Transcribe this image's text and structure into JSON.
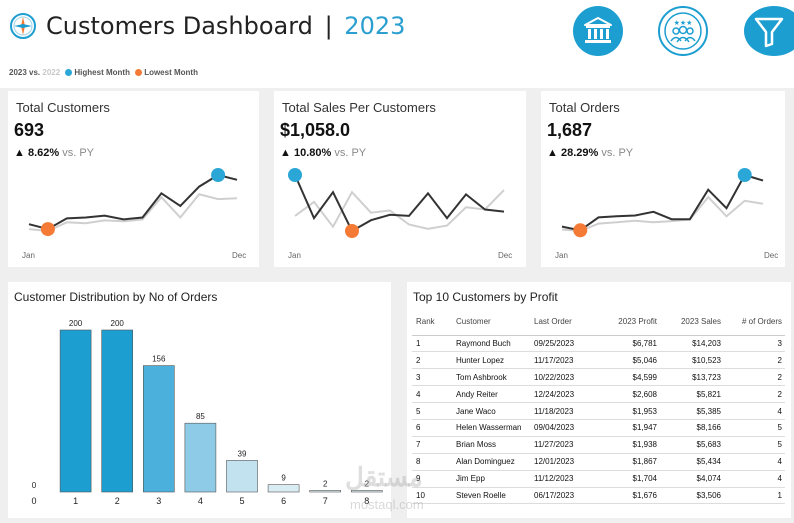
{
  "header": {
    "title": "Customers Dashboard",
    "separator": "|",
    "year": "2023",
    "icons": [
      "compass-icon",
      "bank-icon",
      "people-rating-icon",
      "filter-icon"
    ]
  },
  "legend": {
    "current": "2023 vs.",
    "previous": "2022",
    "highest": "Highest Month",
    "lowest": "Lowest Month",
    "highest_color": "#2aa7d6",
    "lowest_color": "#f47a36"
  },
  "kpis": [
    {
      "title": "Total Customers",
      "value": "693",
      "change": "8.62%",
      "vs": "vs. PY",
      "jan": "Jan",
      "dec": "Dec"
    },
    {
      "title": "Total Sales Per Customers",
      "value": "$1,058.0",
      "change": "10.80%",
      "vs": "vs. PY",
      "jan": "Jan",
      "dec": "Dec"
    },
    {
      "title": "Total Orders",
      "value": "1,687",
      "change": "28.29%",
      "vs": "vs. PY",
      "jan": "Jan",
      "dec": "Dec"
    }
  ],
  "distribution": {
    "title": "Customer Distribution by No of Orders"
  },
  "top_customers": {
    "title": "Top 10 Customers by Profit",
    "columns": [
      "Rank",
      "Customer",
      "Last Order",
      "2023 Profit",
      "2023 Sales",
      "# of Orders"
    ],
    "rows": [
      [
        "1",
        "Raymond Buch",
        "09/25/2023",
        "$6,781",
        "$14,203",
        "3"
      ],
      [
        "2",
        "Hunter Lopez",
        "11/17/2023",
        "$5,046",
        "$10,523",
        "2"
      ],
      [
        "3",
        "Tom Ashbrook",
        "10/22/2023",
        "$4,599",
        "$13,723",
        "2"
      ],
      [
        "4",
        "Andy Reiter",
        "12/24/2023",
        "$2,608",
        "$5,821",
        "2"
      ],
      [
        "5",
        "Jane Waco",
        "11/18/2023",
        "$1,953",
        "$5,385",
        "4"
      ],
      [
        "6",
        "Helen Wasserman",
        "09/04/2023",
        "$1,947",
        "$8,166",
        "5"
      ],
      [
        "7",
        "Brian Moss",
        "11/27/2023",
        "$1,938",
        "$5,683",
        "5"
      ],
      [
        "8",
        "Alan Dominguez",
        "12/01/2023",
        "$1,867",
        "$5,434",
        "4"
      ],
      [
        "9",
        "Jim Epp",
        "11/12/2023",
        "$1,704",
        "$4,074",
        "4"
      ],
      [
        "10",
        "Steven Roelle",
        "06/17/2023",
        "$1,676",
        "$3,506",
        "1"
      ]
    ]
  },
  "watermark": {
    "arabic": "مستقل",
    "latin": "mostaql.com"
  },
  "chart_data": [
    {
      "type": "line",
      "title": "Total Customers",
      "x": [
        "Jan",
        "Feb",
        "Mar",
        "Apr",
        "May",
        "Jun",
        "Jul",
        "Aug",
        "Sep",
        "Oct",
        "Nov",
        "Dec"
      ],
      "series": [
        {
          "name": "2023",
          "values": [
            43,
            38,
            49,
            50,
            52,
            48,
            50,
            75,
            62,
            82,
            94,
            89
          ]
        },
        {
          "name": "2022",
          "values": [
            38,
            36,
            45,
            44,
            47,
            46,
            48,
            71,
            50,
            74,
            69,
            70
          ]
        }
      ],
      "highest_index": 10,
      "lowest_index": 1
    },
    {
      "type": "line",
      "title": "Total Sales Per Customers",
      "x": [
        "Jan",
        "Feb",
        "Mar",
        "Apr",
        "May",
        "Jun",
        "Jul",
        "Aug",
        "Sep",
        "Oct",
        "Nov",
        "Dec"
      ],
      "series": [
        {
          "name": "2023",
          "values": [
            1380,
            980,
            1220,
            860,
            960,
            1010,
            1000,
            1210,
            980,
            1200,
            1060,
            1040
          ]
        },
        {
          "name": "2022",
          "values": [
            1000,
            1130,
            900,
            1220,
            1030,
            1050,
            920,
            880,
            910,
            1080,
            1060,
            1240
          ]
        }
      ],
      "highest_index": 0,
      "lowest_index": 3
    },
    {
      "type": "line",
      "title": "Total Orders",
      "x": [
        "Jan",
        "Feb",
        "Mar",
        "Apr",
        "May",
        "Jun",
        "Jul",
        "Aug",
        "Sep",
        "Oct",
        "Nov",
        "Dec"
      ],
      "series": [
        {
          "name": "2023",
          "values": [
            100,
            90,
            125,
            128,
            130,
            140,
            120,
            120,
            200,
            150,
            240,
            225
          ]
        },
        {
          "name": "2022",
          "values": [
            92,
            88,
            108,
            112,
            116,
            112,
            115,
            119,
            180,
            128,
            170,
            162
          ]
        }
      ],
      "highest_index": 10,
      "lowest_index": 1
    },
    {
      "type": "bar",
      "title": "Customer Distribution by No of Orders",
      "categories": [
        "0",
        "1",
        "2",
        "3",
        "4",
        "5",
        "6",
        "7",
        "8"
      ],
      "values": [
        0,
        200,
        200,
        156,
        85,
        39,
        9,
        2,
        2
      ],
      "ylim": [
        0,
        200
      ]
    }
  ]
}
